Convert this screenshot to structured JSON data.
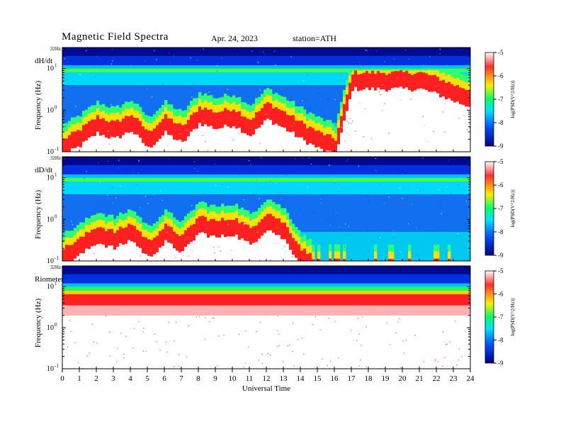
{
  "header": {
    "title": "Magnetic  Field  Spectra",
    "date": "Apr. 24, 2023",
    "station": "station=ATH"
  },
  "colors": {
    "scale": [
      "#ffffff",
      "#ff1a1a",
      "#ffee00",
      "#00ff66",
      "#00e5ff",
      "#0050ff",
      "#000080"
    ]
  },
  "chart_data": [
    {
      "type": "heatmap",
      "panel_label": "dH/dt",
      "ylabel": "Frequency  (Hz)",
      "y_top_label": "32Hz",
      "y_ticks": [
        "10",
        "10",
        "10"
      ],
      "y_tick_exps": [
        "1",
        "0",
        "-1"
      ],
      "y_tick_values": [
        10,
        1,
        0.1
      ],
      "ylim": [
        0.1,
        32
      ],
      "log_y": true,
      "xlim": [
        0,
        24
      ],
      "colorbar": {
        "label": "log(PSD(V^2/Hz))",
        "ticks": [
          "-5",
          "-6",
          "-7",
          "-8",
          "-9"
        ],
        "range": [
          -9,
          -5
        ]
      },
      "approx_cutoff_hz_by_hour": [
        0.2,
        0.35,
        0.7,
        0.5,
        0.8,
        0.3,
        0.7,
        0.4,
        1.2,
        0.9,
        1.1,
        0.6,
        1.5,
        0.9,
        0.5,
        0.3,
        0.2,
        8,
        8,
        8,
        8,
        8,
        6,
        4,
        3
      ]
    },
    {
      "type": "heatmap",
      "panel_label": "dD/dt",
      "ylabel": "Frequency  (Hz)",
      "y_top_label": "32Hz",
      "y_ticks": [
        "10",
        "10",
        "10"
      ],
      "y_tick_exps": [
        "1",
        "0",
        "-1"
      ],
      "y_tick_values": [
        10,
        1,
        0.1
      ],
      "ylim": [
        0.1,
        32
      ],
      "log_y": true,
      "xlim": [
        0,
        24
      ],
      "colorbar": {
        "label": "log(PSD(V^2/Hz))",
        "ticks": [
          "-5",
          "-6",
          "-7",
          "-8",
          "-9"
        ],
        "range": [
          -9,
          -5
        ]
      },
      "approx_cutoff_hz_by_hour": [
        0.2,
        0.35,
        0.7,
        0.5,
        0.8,
        0.3,
        0.7,
        0.4,
        1.2,
        0.9,
        1.1,
        0.6,
        1.5,
        0.8,
        0.2,
        0.1,
        0.1,
        0.1,
        0.1,
        0.1,
        0.1,
        0.1,
        0.1,
        0.1,
        0.1
      ]
    },
    {
      "type": "heatmap",
      "panel_label": "Riometer",
      "ylabel": "Frequency  (Hz)",
      "y_top_label": "32Hz",
      "y_ticks": [
        "10",
        "10",
        "10"
      ],
      "y_tick_exps": [
        "1",
        "0",
        "-1"
      ],
      "y_tick_values": [
        10,
        1,
        0.1
      ],
      "ylim": [
        0.1,
        32
      ],
      "log_y": true,
      "xlim": [
        0,
        24
      ],
      "colorbar": {
        "label": "log(PSD(V^2/Hz))",
        "ticks": [
          "-5",
          "-6",
          "-7",
          "-8",
          "-9"
        ],
        "range": [
          -9,
          -5
        ]
      },
      "approx_cutoff_hz_by_hour": [
        5,
        5,
        5,
        5,
        5,
        5,
        5,
        5,
        5,
        5,
        5,
        5,
        5,
        5,
        5,
        5,
        5,
        5,
        5,
        5,
        5,
        5,
        5,
        5,
        5
      ]
    }
  ],
  "x_axis": {
    "label": "Universal  Time",
    "ticks": [
      "0",
      "1",
      "2",
      "3",
      "4",
      "5",
      "6",
      "7",
      "8",
      "9",
      "10",
      "11",
      "12",
      "13",
      "14",
      "15",
      "16",
      "17",
      "18",
      "19",
      "20",
      "21",
      "22",
      "23",
      "24"
    ],
    "range": [
      0,
      24
    ]
  }
}
